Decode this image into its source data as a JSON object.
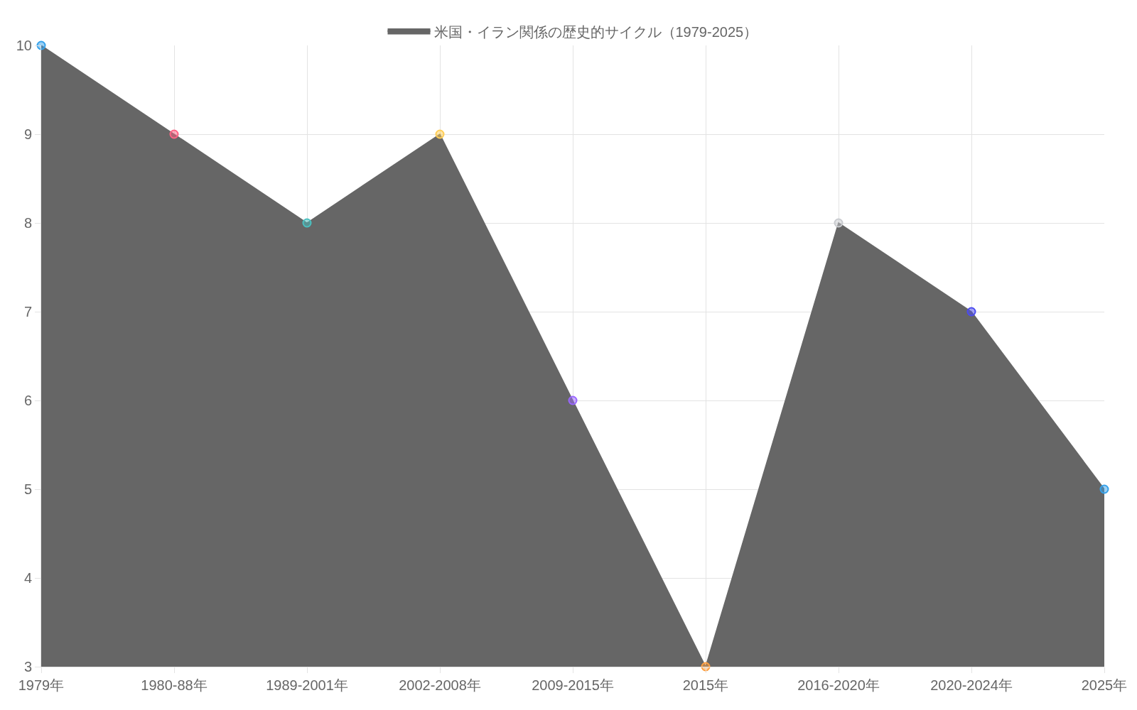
{
  "chart_data": {
    "type": "area",
    "categories": [
      "1979年",
      "1980-88年",
      "1989-2001年",
      "2002-2008年",
      "2009-2015年",
      "2015年",
      "2016-2020年",
      "2020-2024年",
      "2025年"
    ],
    "series": [
      {
        "name": "米国・イラン関係の歴史的サイクル（1979-2025）",
        "color": "#666666",
        "colors": [
          "#36a2eb",
          "#ff6384",
          "#4bc0c0",
          "#ffcd56",
          "#9966ff",
          "#ff9f40",
          "#c9cbcf",
          "#4b4bf0",
          "#36a2eb"
        ],
        "values": [
          10,
          9,
          8,
          9,
          6,
          3,
          8,
          7,
          5
        ]
      }
    ],
    "ylim": [
      3,
      10
    ],
    "yticks": [
      3,
      4,
      5,
      6,
      7,
      8,
      9,
      10
    ],
    "grid": true,
    "legend": "top",
    "marker": "circle"
  }
}
